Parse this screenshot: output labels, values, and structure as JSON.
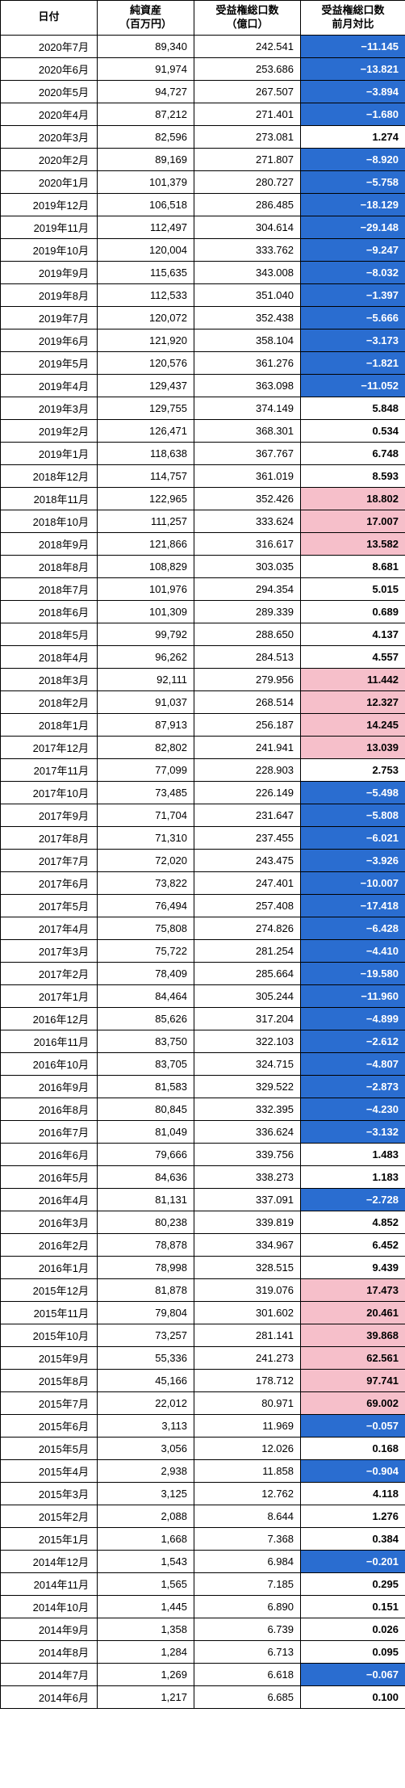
{
  "columns": [
    {
      "label": "日付"
    },
    {
      "label": "純資産\n（百万円）"
    },
    {
      "label": "受益権総口数\n（億口）"
    },
    {
      "label": "受益権総口数\n前月対比"
    }
  ],
  "style": {
    "neg_bg": "#2a6dd0",
    "neg_fg": "#ffffff",
    "pos_bg": "#f6bfca",
    "pos_fg": "#000000",
    "neu_bg": "#ffffff",
    "neu_fg": "#000000",
    "border": "#000000",
    "pos_threshold": 10.0,
    "neg_threshold": 0.0,
    "font_size": 13
  },
  "rows": [
    {
      "date": "2020年7月",
      "nav": "89,340",
      "units": "242.541",
      "mom": "−11.145",
      "val": -11.145
    },
    {
      "date": "2020年6月",
      "nav": "91,974",
      "units": "253.686",
      "mom": "−13.821",
      "val": -13.821
    },
    {
      "date": "2020年5月",
      "nav": "94,727",
      "units": "267.507",
      "mom": "−3.894",
      "val": -3.894
    },
    {
      "date": "2020年4月",
      "nav": "87,212",
      "units": "271.401",
      "mom": "−1.680",
      "val": -1.68
    },
    {
      "date": "2020年3月",
      "nav": "82,596",
      "units": "273.081",
      "mom": "1.274",
      "val": 1.274
    },
    {
      "date": "2020年2月",
      "nav": "89,169",
      "units": "271.807",
      "mom": "−8.920",
      "val": -8.92
    },
    {
      "date": "2020年1月",
      "nav": "101,379",
      "units": "280.727",
      "mom": "−5.758",
      "val": -5.758
    },
    {
      "date": "2019年12月",
      "nav": "106,518",
      "units": "286.485",
      "mom": "−18.129",
      "val": -18.129
    },
    {
      "date": "2019年11月",
      "nav": "112,497",
      "units": "304.614",
      "mom": "−29.148",
      "val": -29.148
    },
    {
      "date": "2019年10月",
      "nav": "120,004",
      "units": "333.762",
      "mom": "−9.247",
      "val": -9.247
    },
    {
      "date": "2019年9月",
      "nav": "115,635",
      "units": "343.008",
      "mom": "−8.032",
      "val": -8.032
    },
    {
      "date": "2019年8月",
      "nav": "112,533",
      "units": "351.040",
      "mom": "−1.397",
      "val": -1.397
    },
    {
      "date": "2019年7月",
      "nav": "120,072",
      "units": "352.438",
      "mom": "−5.666",
      "val": -5.666
    },
    {
      "date": "2019年6月",
      "nav": "121,920",
      "units": "358.104",
      "mom": "−3.173",
      "val": -3.173
    },
    {
      "date": "2019年5月",
      "nav": "120,576",
      "units": "361.276",
      "mom": "−1.821",
      "val": -1.821
    },
    {
      "date": "2019年4月",
      "nav": "129,437",
      "units": "363.098",
      "mom": "−11.052",
      "val": -11.052
    },
    {
      "date": "2019年3月",
      "nav": "129,755",
      "units": "374.149",
      "mom": "5.848",
      "val": 5.848
    },
    {
      "date": "2019年2月",
      "nav": "126,471",
      "units": "368.301",
      "mom": "0.534",
      "val": 0.534
    },
    {
      "date": "2019年1月",
      "nav": "118,638",
      "units": "367.767",
      "mom": "6.748",
      "val": 6.748
    },
    {
      "date": "2018年12月",
      "nav": "114,757",
      "units": "361.019",
      "mom": "8.593",
      "val": 8.593
    },
    {
      "date": "2018年11月",
      "nav": "122,965",
      "units": "352.426",
      "mom": "18.802",
      "val": 18.802
    },
    {
      "date": "2018年10月",
      "nav": "111,257",
      "units": "333.624",
      "mom": "17.007",
      "val": 17.007
    },
    {
      "date": "2018年9月",
      "nav": "121,866",
      "units": "316.617",
      "mom": "13.582",
      "val": 13.582
    },
    {
      "date": "2018年8月",
      "nav": "108,829",
      "units": "303.035",
      "mom": "8.681",
      "val": 8.681
    },
    {
      "date": "2018年7月",
      "nav": "101,976",
      "units": "294.354",
      "mom": "5.015",
      "val": 5.015
    },
    {
      "date": "2018年6月",
      "nav": "101,309",
      "units": "289.339",
      "mom": "0.689",
      "val": 0.689
    },
    {
      "date": "2018年5月",
      "nav": "99,792",
      "units": "288.650",
      "mom": "4.137",
      "val": 4.137
    },
    {
      "date": "2018年4月",
      "nav": "96,262",
      "units": "284.513",
      "mom": "4.557",
      "val": 4.557
    },
    {
      "date": "2018年3月",
      "nav": "92,111",
      "units": "279.956",
      "mom": "11.442",
      "val": 11.442
    },
    {
      "date": "2018年2月",
      "nav": "91,037",
      "units": "268.514",
      "mom": "12.327",
      "val": 12.327
    },
    {
      "date": "2018年1月",
      "nav": "87,913",
      "units": "256.187",
      "mom": "14.245",
      "val": 14.245
    },
    {
      "date": "2017年12月",
      "nav": "82,802",
      "units": "241.941",
      "mom": "13.039",
      "val": 13.039
    },
    {
      "date": "2017年11月",
      "nav": "77,099",
      "units": "228.903",
      "mom": "2.753",
      "val": 2.753
    },
    {
      "date": "2017年10月",
      "nav": "73,485",
      "units": "226.149",
      "mom": "−5.498",
      "val": -5.498
    },
    {
      "date": "2017年9月",
      "nav": "71,704",
      "units": "231.647",
      "mom": "−5.808",
      "val": -5.808
    },
    {
      "date": "2017年8月",
      "nav": "71,310",
      "units": "237.455",
      "mom": "−6.021",
      "val": -6.021
    },
    {
      "date": "2017年7月",
      "nav": "72,020",
      "units": "243.475",
      "mom": "−3.926",
      "val": -3.926
    },
    {
      "date": "2017年6月",
      "nav": "73,822",
      "units": "247.401",
      "mom": "−10.007",
      "val": -10.007
    },
    {
      "date": "2017年5月",
      "nav": "76,494",
      "units": "257.408",
      "mom": "−17.418",
      "val": -17.418
    },
    {
      "date": "2017年4月",
      "nav": "75,808",
      "units": "274.826",
      "mom": "−6.428",
      "val": -6.428
    },
    {
      "date": "2017年3月",
      "nav": "75,722",
      "units": "281.254",
      "mom": "−4.410",
      "val": -4.41
    },
    {
      "date": "2017年2月",
      "nav": "78,409",
      "units": "285.664",
      "mom": "−19.580",
      "val": -19.58
    },
    {
      "date": "2017年1月",
      "nav": "84,464",
      "units": "305.244",
      "mom": "−11.960",
      "val": -11.96
    },
    {
      "date": "2016年12月",
      "nav": "85,626",
      "units": "317.204",
      "mom": "−4.899",
      "val": -4.899
    },
    {
      "date": "2016年11月",
      "nav": "83,750",
      "units": "322.103",
      "mom": "−2.612",
      "val": -2.612
    },
    {
      "date": "2016年10月",
      "nav": "83,705",
      "units": "324.715",
      "mom": "−4.807",
      "val": -4.807
    },
    {
      "date": "2016年9月",
      "nav": "81,583",
      "units": "329.522",
      "mom": "−2.873",
      "val": -2.873
    },
    {
      "date": "2016年8月",
      "nav": "80,845",
      "units": "332.395",
      "mom": "−4.230",
      "val": -4.23
    },
    {
      "date": "2016年7月",
      "nav": "81,049",
      "units": "336.624",
      "mom": "−3.132",
      "val": -3.132
    },
    {
      "date": "2016年6月",
      "nav": "79,666",
      "units": "339.756",
      "mom": "1.483",
      "val": 1.483
    },
    {
      "date": "2016年5月",
      "nav": "84,636",
      "units": "338.273",
      "mom": "1.183",
      "val": 1.183
    },
    {
      "date": "2016年4月",
      "nav": "81,131",
      "units": "337.091",
      "mom": "−2.728",
      "val": -2.728
    },
    {
      "date": "2016年3月",
      "nav": "80,238",
      "units": "339.819",
      "mom": "4.852",
      "val": 4.852
    },
    {
      "date": "2016年2月",
      "nav": "78,878",
      "units": "334.967",
      "mom": "6.452",
      "val": 6.452
    },
    {
      "date": "2016年1月",
      "nav": "78,998",
      "units": "328.515",
      "mom": "9.439",
      "val": 9.439
    },
    {
      "date": "2015年12月",
      "nav": "81,878",
      "units": "319.076",
      "mom": "17.473",
      "val": 17.473
    },
    {
      "date": "2015年11月",
      "nav": "79,804",
      "units": "301.602",
      "mom": "20.461",
      "val": 20.461
    },
    {
      "date": "2015年10月",
      "nav": "73,257",
      "units": "281.141",
      "mom": "39.868",
      "val": 39.868
    },
    {
      "date": "2015年9月",
      "nav": "55,336",
      "units": "241.273",
      "mom": "62.561",
      "val": 62.561
    },
    {
      "date": "2015年8月",
      "nav": "45,166",
      "units": "178.712",
      "mom": "97.741",
      "val": 97.741
    },
    {
      "date": "2015年7月",
      "nav": "22,012",
      "units": "80.971",
      "mom": "69.002",
      "val": 69.002
    },
    {
      "date": "2015年6月",
      "nav": "3,113",
      "units": "11.969",
      "mom": "−0.057",
      "val": -0.057
    },
    {
      "date": "2015年5月",
      "nav": "3,056",
      "units": "12.026",
      "mom": "0.168",
      "val": 0.168
    },
    {
      "date": "2015年4月",
      "nav": "2,938",
      "units": "11.858",
      "mom": "−0.904",
      "val": -0.904
    },
    {
      "date": "2015年3月",
      "nav": "3,125",
      "units": "12.762",
      "mom": "4.118",
      "val": 4.118
    },
    {
      "date": "2015年2月",
      "nav": "2,088",
      "units": "8.644",
      "mom": "1.276",
      "val": 1.276
    },
    {
      "date": "2015年1月",
      "nav": "1,668",
      "units": "7.368",
      "mom": "0.384",
      "val": 0.384
    },
    {
      "date": "2014年12月",
      "nav": "1,543",
      "units": "6.984",
      "mom": "−0.201",
      "val": -0.201
    },
    {
      "date": "2014年11月",
      "nav": "1,565",
      "units": "7.185",
      "mom": "0.295",
      "val": 0.295
    },
    {
      "date": "2014年10月",
      "nav": "1,445",
      "units": "6.890",
      "mom": "0.151",
      "val": 0.151
    },
    {
      "date": "2014年9月",
      "nav": "1,358",
      "units": "6.739",
      "mom": "0.026",
      "val": 0.026
    },
    {
      "date": "2014年8月",
      "nav": "1,284",
      "units": "6.713",
      "mom": "0.095",
      "val": 0.095
    },
    {
      "date": "2014年7月",
      "nav": "1,269",
      "units": "6.618",
      "mom": "−0.067",
      "val": -0.067
    },
    {
      "date": "2014年6月",
      "nav": "1,217",
      "units": "6.685",
      "mom": "0.100",
      "val": 0.1
    }
  ]
}
